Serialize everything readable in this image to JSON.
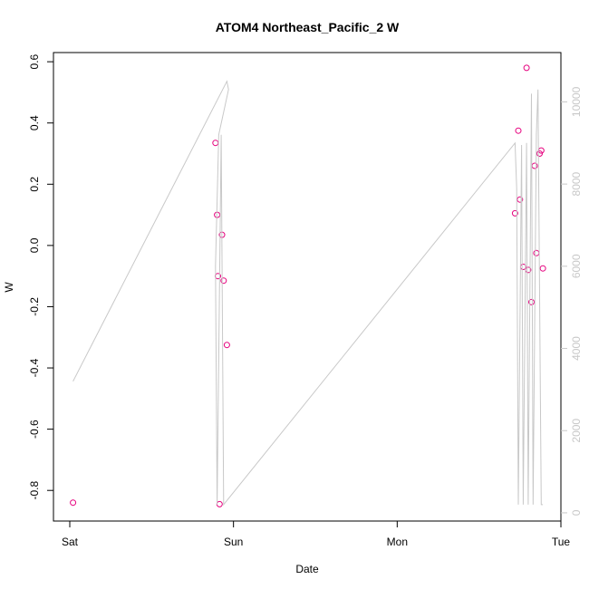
{
  "chart_data": {
    "type": "scatter",
    "title": "ATOM4 Northeast_Pacific_2 W",
    "xlabel": "Date",
    "ylabel": "W",
    "x_axis": {
      "type": "date",
      "range_days": [
        0,
        3
      ],
      "ticks": [
        {
          "day": 0,
          "label": "Sat"
        },
        {
          "day": 1,
          "label": "Sun"
        },
        {
          "day": 2,
          "label": "Mon"
        },
        {
          "day": 3,
          "label": "Tue"
        }
      ]
    },
    "y_left": {
      "ylim": [
        -0.9,
        0.63
      ],
      "ticks": [
        {
          "value": -0.8,
          "label": "-0.8"
        },
        {
          "value": -0.6,
          "label": "-0.6"
        },
        {
          "value": -0.4,
          "label": "-0.4"
        },
        {
          "value": -0.2,
          "label": "-0.2"
        },
        {
          "value": 0.0,
          "label": "0.0"
        },
        {
          "value": 0.2,
          "label": "0.2"
        },
        {
          "value": 0.4,
          "label": "0.4"
        },
        {
          "value": 0.6,
          "label": "0.6"
        }
      ]
    },
    "y_right": {
      "ylim": [
        -200,
        11200
      ],
      "color": "#c8c8c8",
      "ticks": [
        {
          "value": 0,
          "label": "0"
        },
        {
          "value": 2000,
          "label": "2000"
        },
        {
          "value": 4000,
          "label": "4000"
        },
        {
          "value": 6000,
          "label": "6000"
        },
        {
          "value": 8000,
          "label": "8000"
        },
        {
          "value": 10000,
          "label": "10000"
        }
      ]
    },
    "series": [
      {
        "type": "scatter",
        "axis": "left",
        "color": "#e6007e",
        "x": [
          0.02,
          0.89,
          0.9,
          0.905,
          0.915,
          0.93,
          0.94,
          0.96,
          2.72,
          2.74,
          2.75,
          2.77,
          2.79,
          2.8,
          2.82,
          2.84,
          2.85,
          2.87,
          2.88,
          2.89
        ],
        "y": [
          -0.84,
          0.335,
          0.1,
          -0.1,
          -0.845,
          0.035,
          -0.115,
          -0.325,
          0.105,
          0.375,
          0.15,
          -0.07,
          0.58,
          -0.08,
          -0.185,
          0.26,
          -0.025,
          0.3,
          0.31,
          -0.075
        ]
      },
      {
        "type": "line",
        "axis": "right",
        "color": "#c8c8c8",
        "x": [
          0.02,
          0.96,
          0.97,
          0.91,
          0.89,
          0.9,
          0.925,
          0.94,
          2.72,
          2.73,
          2.74,
          2.76,
          2.77,
          2.79,
          2.8,
          2.82,
          2.83,
          2.85,
          2.86,
          2.88,
          2.89
        ],
        "y": [
          3200,
          10500,
          10300,
          9200,
          6000,
          200,
          9200,
          200,
          9000,
          7900,
          200,
          8950,
          200,
          9000,
          200,
          10200,
          200,
          9200,
          10300,
          200,
          200
        ]
      }
    ]
  }
}
